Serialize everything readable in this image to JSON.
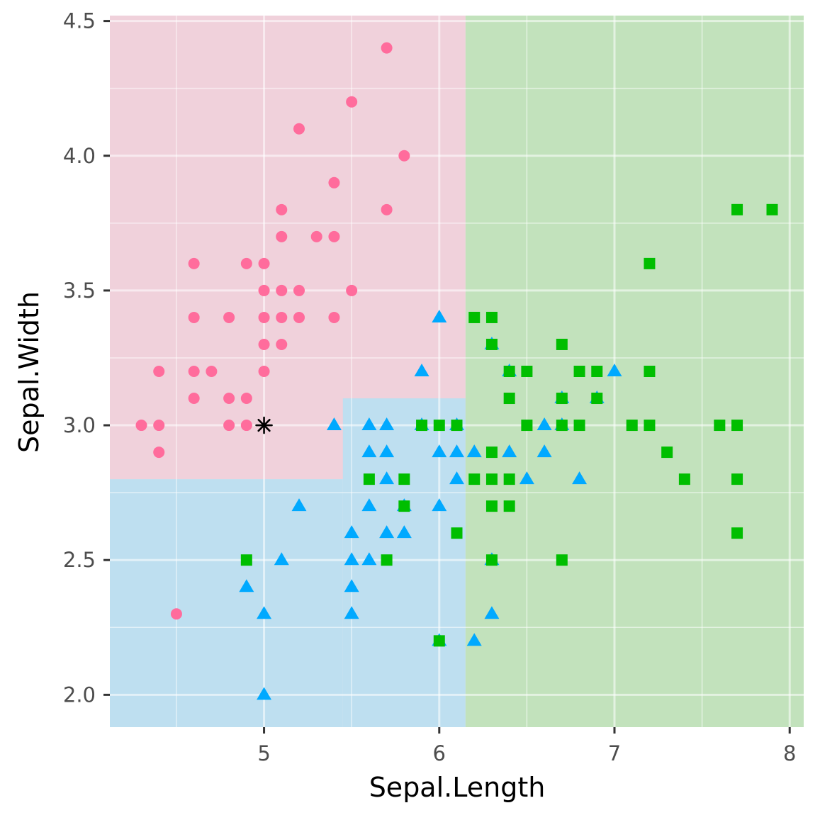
{
  "chart_data": {
    "type": "scatter",
    "title": "",
    "xlabel": "Sepal.Length",
    "ylabel": "Sepal.Width",
    "xlim": [
      4.12,
      8.08
    ],
    "ylim": [
      1.88,
      4.52
    ],
    "x_ticks": [
      5,
      6,
      7,
      8
    ],
    "x_tick_labels": [
      "5",
      "6",
      "7",
      "8"
    ],
    "y_ticks": [
      2.0,
      2.5,
      3.0,
      3.5,
      4.0,
      4.5
    ],
    "y_tick_labels": [
      "2.0",
      "2.5",
      "3.0",
      "3.5",
      "4.0",
      "4.5"
    ],
    "grid": true,
    "legend": "none",
    "colors": {
      "panel": "#ebebeb",
      "grid": "#ffffff",
      "setosa": "#f8766d",
      "point_a": "#ff6c9c",
      "point_b": "#00a9ff",
      "point_c": "#00be00",
      "region_a": "#ffc0d6",
      "region_b": "#a6d8ff",
      "region_c": "#a6e8a6",
      "highlight": "#000000"
    },
    "regions": [
      {
        "class": "a",
        "x": [
          4.12,
          6.15
        ],
        "y": [
          2.8,
          4.52
        ]
      },
      {
        "class": "a",
        "x": [
          4.12,
          5.45
        ],
        "y": [
          2.8,
          3.1
        ]
      },
      {
        "class": "b",
        "x": [
          4.12,
          5.45
        ],
        "y": [
          1.88,
          2.8
        ]
      },
      {
        "class": "b",
        "x": [
          5.45,
          6.15
        ],
        "y": [
          1.88,
          3.1
        ]
      },
      {
        "class": "c",
        "x": [
          6.15,
          8.08
        ],
        "y": [
          1.88,
          4.52
        ]
      }
    ],
    "series": [
      {
        "shape": "circle",
        "color": "#ff6c9c",
        "points": [
          [
            5.7,
            4.4
          ],
          [
            5.5,
            4.2
          ],
          [
            5.2,
            4.1
          ],
          [
            5.8,
            4.0
          ],
          [
            5.4,
            3.9
          ],
          [
            5.1,
            3.8
          ],
          [
            5.7,
            3.8
          ],
          [
            5.1,
            3.7
          ],
          [
            5.3,
            3.7
          ],
          [
            5.4,
            3.7
          ],
          [
            4.6,
            3.6
          ],
          [
            4.9,
            3.6
          ],
          [
            5.0,
            3.6
          ],
          [
            5.0,
            3.5
          ],
          [
            5.1,
            3.5
          ],
          [
            5.2,
            3.5
          ],
          [
            5.5,
            3.5
          ],
          [
            4.6,
            3.4
          ],
          [
            4.8,
            3.4
          ],
          [
            5.0,
            3.4
          ],
          [
            5.1,
            3.4
          ],
          [
            5.2,
            3.4
          ],
          [
            5.4,
            3.4
          ],
          [
            5.0,
            3.3
          ],
          [
            5.1,
            3.3
          ],
          [
            4.4,
            3.2
          ],
          [
            4.6,
            3.2
          ],
          [
            4.7,
            3.2
          ],
          [
            5.0,
            3.2
          ],
          [
            4.6,
            3.1
          ],
          [
            4.8,
            3.1
          ],
          [
            4.9,
            3.1
          ],
          [
            4.3,
            3.0
          ],
          [
            4.4,
            3.0
          ],
          [
            4.8,
            3.0
          ],
          [
            4.9,
            3.0
          ],
          [
            4.4,
            2.9
          ],
          [
            4.5,
            2.3
          ]
        ]
      },
      {
        "shape": "triangle",
        "color": "#00a9ff",
        "points": [
          [
            6.0,
            3.4
          ],
          [
            6.3,
            3.3
          ],
          [
            5.9,
            3.2
          ],
          [
            6.4,
            3.2
          ],
          [
            7.0,
            3.2
          ],
          [
            6.7,
            3.1
          ],
          [
            6.9,
            3.1
          ],
          [
            5.4,
            3.0
          ],
          [
            5.6,
            3.0
          ],
          [
            5.7,
            3.0
          ],
          [
            5.9,
            3.0
          ],
          [
            6.1,
            3.0
          ],
          [
            6.6,
            3.0
          ],
          [
            6.7,
            3.0
          ],
          [
            5.6,
            2.9
          ],
          [
            5.7,
            2.9
          ],
          [
            6.0,
            2.9
          ],
          [
            6.1,
            2.9
          ],
          [
            6.2,
            2.9
          ],
          [
            6.4,
            2.9
          ],
          [
            6.6,
            2.9
          ],
          [
            5.7,
            2.8
          ],
          [
            6.1,
            2.8
          ],
          [
            6.5,
            2.8
          ],
          [
            6.8,
            2.8
          ],
          [
            5.2,
            2.7
          ],
          [
            5.6,
            2.7
          ],
          [
            5.8,
            2.7
          ],
          [
            6.0,
            2.7
          ],
          [
            5.5,
            2.6
          ],
          [
            5.7,
            2.6
          ],
          [
            5.8,
            2.6
          ],
          [
            5.1,
            2.5
          ],
          [
            5.5,
            2.5
          ],
          [
            5.6,
            2.5
          ],
          [
            6.3,
            2.5
          ],
          [
            4.9,
            2.4
          ],
          [
            5.5,
            2.4
          ],
          [
            5.0,
            2.3
          ],
          [
            5.5,
            2.3
          ],
          [
            6.3,
            2.3
          ],
          [
            6.0,
            2.2
          ],
          [
            6.2,
            2.2
          ],
          [
            5.0,
            2.0
          ]
        ]
      },
      {
        "shape": "square",
        "color": "#00be00",
        "points": [
          [
            7.7,
            3.8
          ],
          [
            7.9,
            3.8
          ],
          [
            7.2,
            3.6
          ],
          [
            6.2,
            3.4
          ],
          [
            6.3,
            3.4
          ],
          [
            6.3,
            3.3
          ],
          [
            6.7,
            3.3
          ],
          [
            6.4,
            3.2
          ],
          [
            6.5,
            3.2
          ],
          [
            6.8,
            3.2
          ],
          [
            6.9,
            3.2
          ],
          [
            7.2,
            3.2
          ],
          [
            6.4,
            3.1
          ],
          [
            6.7,
            3.1
          ],
          [
            6.9,
            3.1
          ],
          [
            5.9,
            3.0
          ],
          [
            6.0,
            3.0
          ],
          [
            6.1,
            3.0
          ],
          [
            6.5,
            3.0
          ],
          [
            6.7,
            3.0
          ],
          [
            6.8,
            3.0
          ],
          [
            7.1,
            3.0
          ],
          [
            7.2,
            3.0
          ],
          [
            7.6,
            3.0
          ],
          [
            7.7,
            3.0
          ],
          [
            6.3,
            2.9
          ],
          [
            7.3,
            2.9
          ],
          [
            5.6,
            2.8
          ],
          [
            5.8,
            2.8
          ],
          [
            6.2,
            2.8
          ],
          [
            6.3,
            2.8
          ],
          [
            6.4,
            2.8
          ],
          [
            7.4,
            2.8
          ],
          [
            7.7,
            2.8
          ],
          [
            5.8,
            2.7
          ],
          [
            6.3,
            2.7
          ],
          [
            6.4,
            2.7
          ],
          [
            6.1,
            2.6
          ],
          [
            7.7,
            2.6
          ],
          [
            4.9,
            2.5
          ],
          [
            5.7,
            2.5
          ],
          [
            6.3,
            2.5
          ],
          [
            6.7,
            2.5
          ],
          [
            6.0,
            2.2
          ]
        ]
      }
    ],
    "highlight_point": {
      "shape": "asterisk",
      "x": 5.0,
      "y": 3.0
    }
  }
}
